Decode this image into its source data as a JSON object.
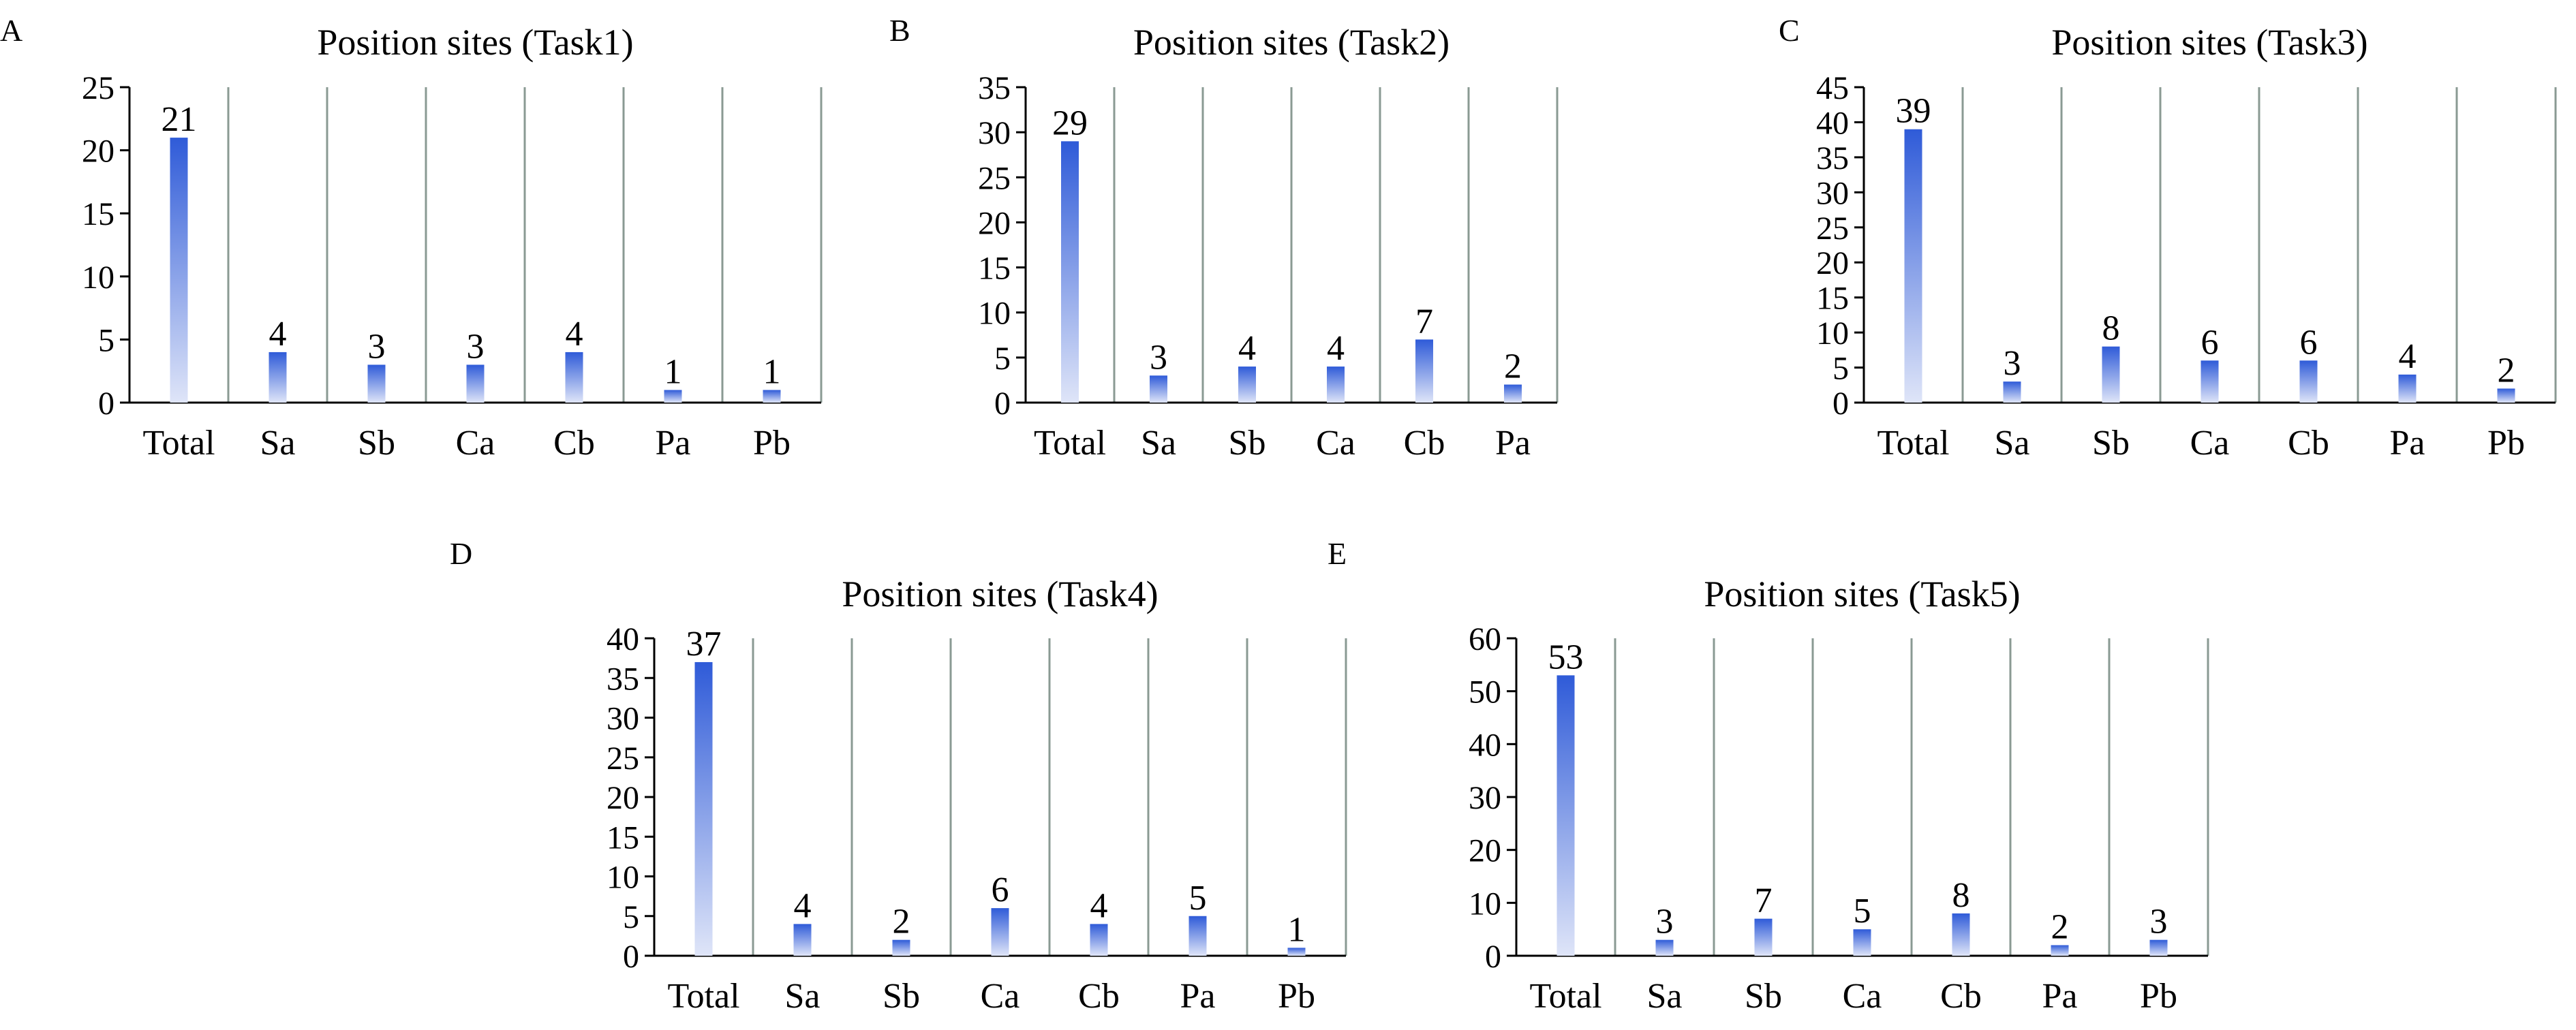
{
  "colors": {
    "bar_top": "#2f5bd8",
    "bar_bottom": "#dfe5f8",
    "axis": "#000000",
    "separator": "#8a9a93"
  },
  "chart_data": [
    {
      "type": "bar",
      "panel": "A",
      "title": "Position sites (Task1)",
      "categories": [
        "Total",
        "Sa",
        "Sb",
        "Ca",
        "Cb",
        "Pa",
        "Pb"
      ],
      "values": [
        21,
        4,
        3,
        3,
        4,
        1,
        1
      ],
      "ylim": [
        0,
        25
      ],
      "yticks": [
        0,
        5,
        10,
        15,
        20,
        25
      ],
      "xlabel": "",
      "ylabel": "",
      "grid": false
    },
    {
      "type": "bar",
      "panel": "B",
      "title": "Position sites (Task2)",
      "categories": [
        "Total",
        "Sa",
        "Sb",
        "Ca",
        "Cb",
        "Pa"
      ],
      "values": [
        29,
        3,
        4,
        4,
        7,
        2
      ],
      "ylim": [
        0,
        35
      ],
      "yticks": [
        0,
        5,
        10,
        15,
        20,
        25,
        30,
        35
      ],
      "xlabel": "",
      "ylabel": "",
      "grid": false
    },
    {
      "type": "bar",
      "panel": "C",
      "title": "Position sites (Task3)",
      "categories": [
        "Total",
        "Sa",
        "Sb",
        "Ca",
        "Cb",
        "Pa",
        "Pb"
      ],
      "values": [
        39,
        3,
        8,
        6,
        6,
        4,
        2
      ],
      "ylim": [
        0,
        45
      ],
      "yticks": [
        0,
        5,
        10,
        15,
        20,
        25,
        30,
        35,
        40,
        45
      ],
      "xlabel": "",
      "ylabel": "",
      "grid": false
    },
    {
      "type": "bar",
      "panel": "D",
      "title": "Position sites (Task4)",
      "categories": [
        "Total",
        "Sa",
        "Sb",
        "Ca",
        "Cb",
        "Pa",
        "Pb"
      ],
      "values": [
        37,
        4,
        2,
        6,
        4,
        5,
        1
      ],
      "ylim": [
        0,
        40
      ],
      "yticks": [
        0,
        5,
        10,
        15,
        20,
        25,
        30,
        35,
        40
      ],
      "xlabel": "",
      "ylabel": "",
      "grid": false
    },
    {
      "type": "bar",
      "panel": "E",
      "title": "Position sites (Task5)",
      "categories": [
        "Total",
        "Sa",
        "Sb",
        "Ca",
        "Cb",
        "Pa",
        "Pb"
      ],
      "values": [
        53,
        3,
        7,
        5,
        8,
        2,
        3
      ],
      "ylim": [
        0,
        60
      ],
      "yticks": [
        0,
        10,
        20,
        30,
        40,
        50,
        60
      ],
      "xlabel": "",
      "ylabel": "",
      "grid": false
    }
  ]
}
